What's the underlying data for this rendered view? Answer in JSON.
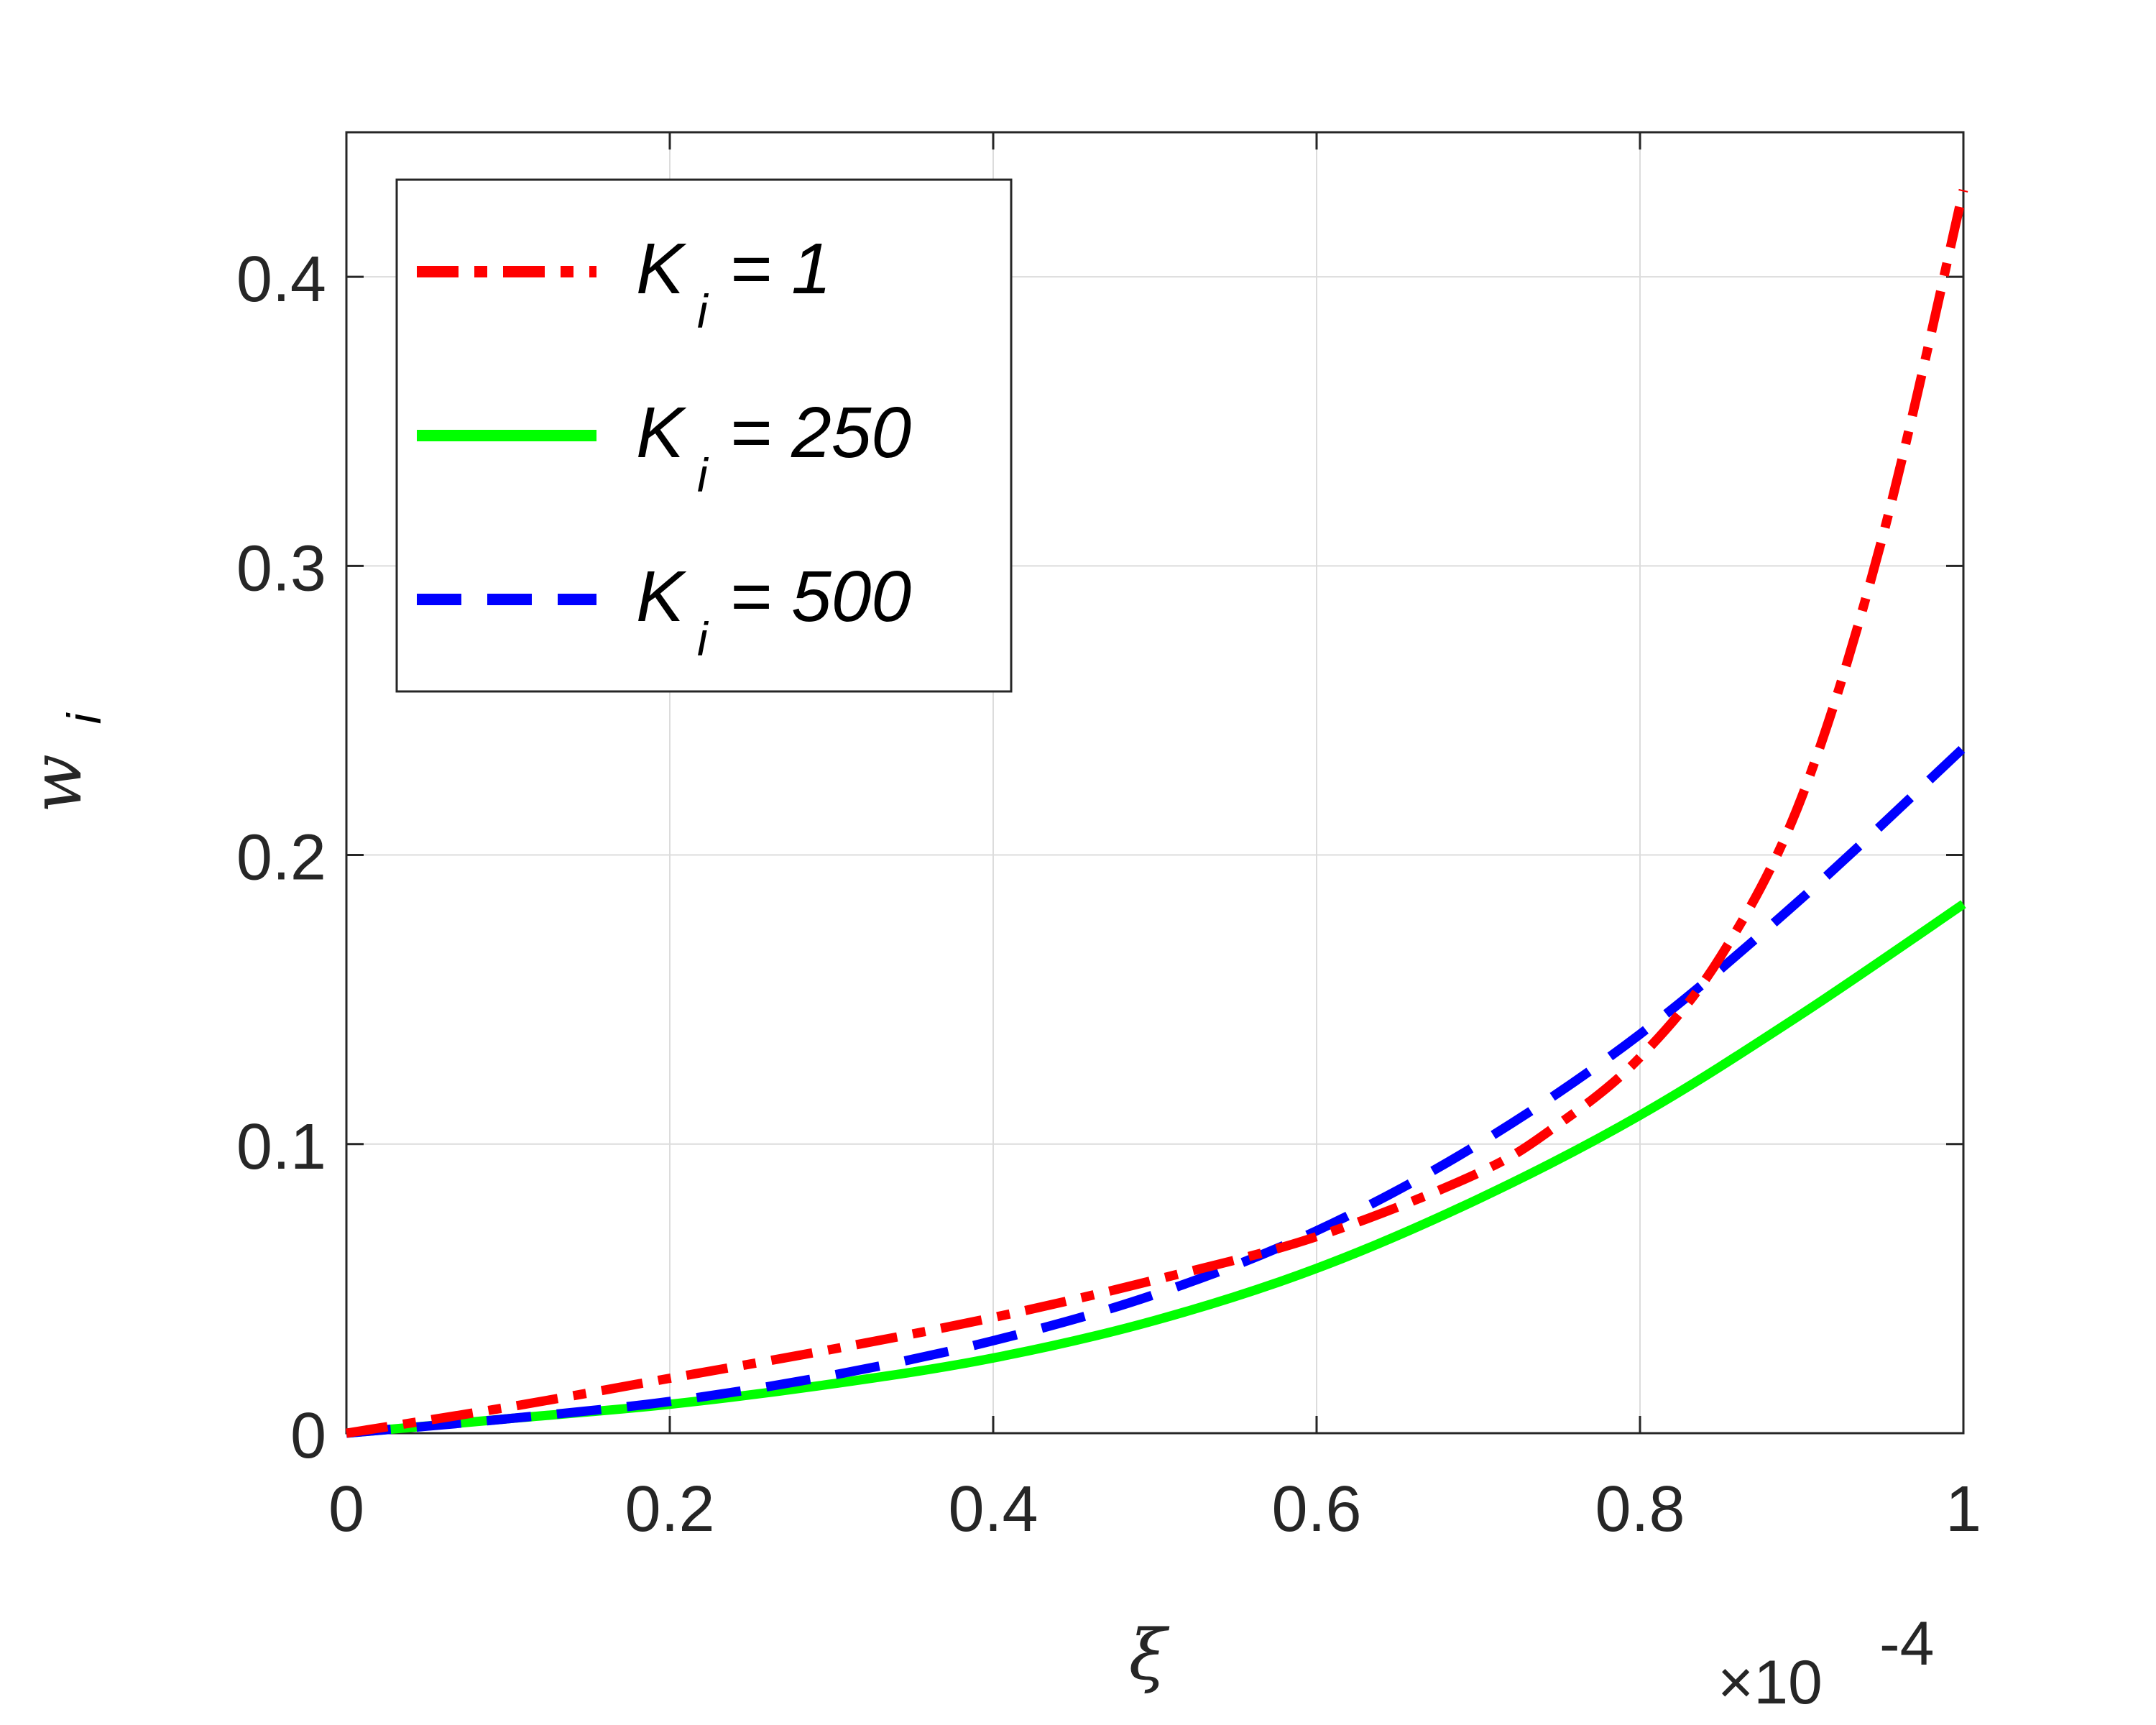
{
  "chart_data": {
    "type": "line",
    "xlabel": "ξ",
    "ylabel_main": "w",
    "ylabel_sub": "i",
    "x_exponent_label": "×10",
    "x_exponent_power": "-4",
    "xlim": [
      0,
      1
    ],
    "ylim": [
      0,
      0.45
    ],
    "x_ticks": [
      0,
      0.2,
      0.4,
      0.6,
      0.8,
      1
    ],
    "x_tick_labels": [
      "0",
      "0.2",
      "0.4",
      "0.6",
      "0.8",
      "1"
    ],
    "y_ticks": [
      0,
      0.1,
      0.2,
      0.3,
      0.4
    ],
    "y_tick_labels": [
      "0",
      "0.1",
      "0.2",
      "0.3",
      "0.4"
    ],
    "grid": true,
    "legend_position": "top-left",
    "series": [
      {
        "name_main": "K",
        "name_sub": "i",
        "name_rest": " = 1",
        "color": "#ff0000",
        "style": "dashdot",
        "x": [
          0,
          0.1,
          0.2,
          0.3,
          0.4,
          0.5,
          0.6,
          0.7,
          0.75,
          0.8,
          0.85,
          0.9,
          0.95,
          1.0
        ],
        "y": [
          0,
          0.009,
          0.019,
          0.029,
          0.04,
          0.053,
          0.068,
          0.09,
          0.107,
          0.13,
          0.165,
          0.22,
          0.31,
          0.43
        ]
      },
      {
        "name_main": "K",
        "name_sub": "i",
        "name_rest": " = 250",
        "color": "#00ff00",
        "style": "solid",
        "x": [
          0,
          0.1,
          0.2,
          0.3,
          0.4,
          0.5,
          0.6,
          0.7,
          0.8,
          0.9,
          1.0
        ],
        "y": [
          0,
          0.005,
          0.01,
          0.017,
          0.026,
          0.039,
          0.057,
          0.081,
          0.11,
          0.145,
          0.183
        ]
      },
      {
        "name_main": "K",
        "name_sub": "i",
        "name_rest": " = 500",
        "color": "#0000ff",
        "style": "dashed",
        "x": [
          0,
          0.1,
          0.2,
          0.3,
          0.4,
          0.5,
          0.6,
          0.7,
          0.8,
          0.9,
          1.0
        ],
        "y": [
          0,
          0.005,
          0.011,
          0.02,
          0.032,
          0.048,
          0.07,
          0.1,
          0.138,
          0.185,
          0.237
        ]
      }
    ]
  }
}
